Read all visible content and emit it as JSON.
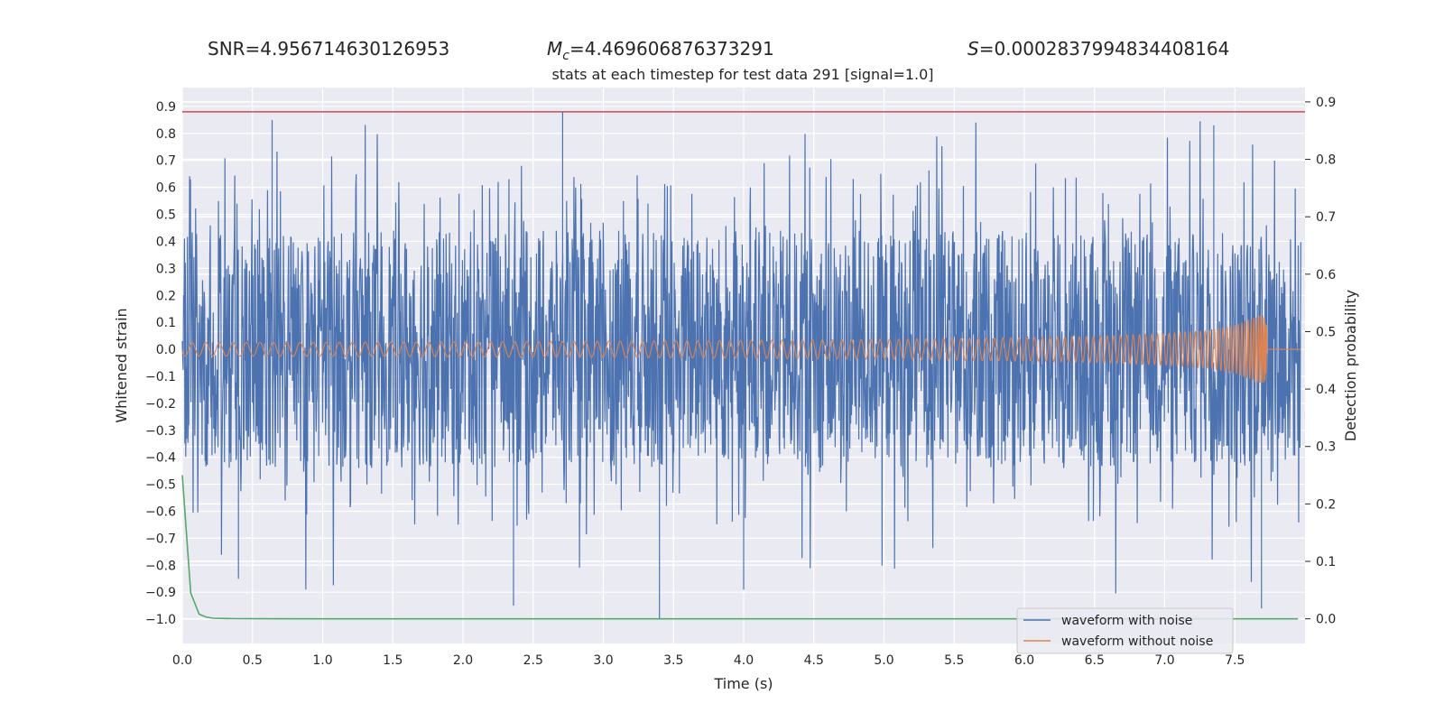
{
  "header": {
    "snr": "SNR=4.956714630126953",
    "mc_symbol": "M",
    "mc_sub": "c",
    "mc_value": "=4.469606876373291",
    "s_symbol": "S",
    "s_value": "=0.0002837994834408164"
  },
  "colors": {
    "noisy": "#4c72b0",
    "clean": "#dd8452",
    "probability": "#55a868",
    "threshold": "#c44e52",
    "plot_bg": "#eaeaf2",
    "grid": "#ffffff"
  },
  "chart_data": {
    "type": "line",
    "title": "stats at each timestep for test data 291 [signal=1.0]",
    "xlabel": "Time (s)",
    "ylabel": "Whitened strain",
    "ylabel_right": "Detection probability",
    "xlim": [
      0.0,
      8.0
    ],
    "ylim": [
      -1.09,
      0.97
    ],
    "ylim_right": [
      -0.043,
      0.925
    ],
    "xticks": [
      "0.0",
      "0.5",
      "1.0",
      "1.5",
      "2.0",
      "2.5",
      "3.0",
      "3.5",
      "4.0",
      "4.5",
      "5.0",
      "5.5",
      "6.0",
      "6.5",
      "7.0",
      "7.5"
    ],
    "yticks": [
      "0.9",
      "0.8",
      "0.7",
      "0.6",
      "0.5",
      "0.4",
      "0.3",
      "0.2",
      "0.1",
      "0.0",
      "-0.1",
      "-0.2",
      "-0.3",
      "-0.4",
      "-0.5",
      "-0.6",
      "-0.7",
      "-0.8",
      "-0.9",
      "-1.0"
    ],
    "yticks_right": [
      "0.9",
      "0.8",
      "0.7",
      "0.6",
      "0.5",
      "0.4",
      "0.3",
      "0.2",
      "0.1",
      "0.0"
    ],
    "grid": true,
    "legend_position": "bottom-right",
    "threshold": 0.9,
    "series": [
      {
        "name": "waveform with noise",
        "axis": "left",
        "note_sampled": "dense noise approx. uniform within ±0.45 with spikes up to +0.88 and down to -1.00",
        "peaks_max": [
          0.85,
          0.88,
          0.83,
          0.82,
          0.8,
          0.75,
          0.74,
          0.72
        ],
        "peaks_min": [
          -1.0,
          -0.96,
          -0.95,
          -0.94,
          -0.89,
          -0.85,
          -0.84
        ]
      },
      {
        "name": "waveform without noise",
        "axis": "left",
        "envelope": {
          "t": [
            0.0,
            1.0,
            2.0,
            3.0,
            4.0,
            5.0,
            6.0,
            6.5,
            7.0,
            7.3,
            7.5,
            7.6,
            7.68,
            7.72,
            7.75,
            8.0
          ],
          "amp": [
            0.025,
            0.026,
            0.028,
            0.03,
            0.033,
            0.037,
            0.043,
            0.048,
            0.058,
            0.07,
            0.09,
            0.11,
            0.13,
            0.12,
            0.0,
            0.0
          ]
        }
      },
      {
        "name": "",
        "axis": "right",
        "x": [
          0.0,
          0.06,
          0.12,
          0.17,
          0.22,
          0.3,
          0.4,
          0.6,
          1.0,
          7.95
        ],
        "y": [
          0.25,
          0.045,
          0.008,
          0.003,
          0.001,
          0.0005,
          0.0002,
          0.0001,
          0.0,
          0.0
        ]
      }
    ]
  }
}
